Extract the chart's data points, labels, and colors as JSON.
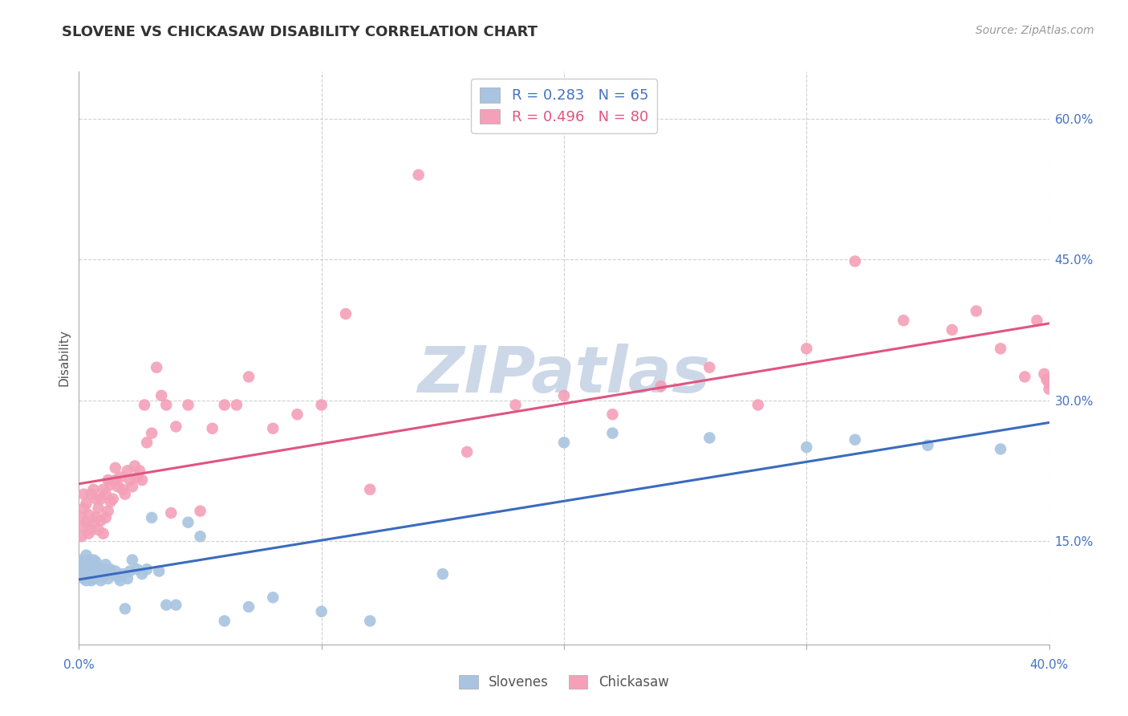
{
  "title": "SLOVENE VS CHICKASAW DISABILITY CORRELATION CHART",
  "source": "Source: ZipAtlas.com",
  "ylabel": "Disability",
  "xlim": [
    0.0,
    0.4
  ],
  "ylim": [
    0.04,
    0.65
  ],
  "yticks": [
    0.15,
    0.3,
    0.45,
    0.6
  ],
  "ytick_labels": [
    "15.0%",
    "30.0%",
    "45.0%",
    "60.0%"
  ],
  "xticks": [
    0.0,
    0.1,
    0.2,
    0.3,
    0.4
  ],
  "series": [
    {
      "name": "Slovenes",
      "color": "#a8c4e0",
      "line_color": "#3b6bbf",
      "R": 0.283,
      "N": 65,
      "x": [
        0.001,
        0.001,
        0.001,
        0.002,
        0.002,
        0.002,
        0.002,
        0.003,
        0.003,
        0.003,
        0.003,
        0.004,
        0.004,
        0.004,
        0.005,
        0.005,
        0.005,
        0.006,
        0.006,
        0.006,
        0.007,
        0.007,
        0.007,
        0.008,
        0.008,
        0.009,
        0.009,
        0.01,
        0.01,
        0.011,
        0.011,
        0.012,
        0.012,
        0.013,
        0.014,
        0.015,
        0.016,
        0.017,
        0.018,
        0.019,
        0.02,
        0.021,
        0.022,
        0.024,
        0.026,
        0.028,
        0.03,
        0.033,
        0.036,
        0.04,
        0.045,
        0.05,
        0.06,
        0.07,
        0.08,
        0.1,
        0.12,
        0.15,
        0.2,
        0.22,
        0.26,
        0.3,
        0.32,
        0.35,
        0.38
      ],
      "y": [
        0.125,
        0.115,
        0.13,
        0.11,
        0.118,
        0.128,
        0.12,
        0.108,
        0.118,
        0.125,
        0.135,
        0.112,
        0.122,
        0.13,
        0.108,
        0.115,
        0.125,
        0.11,
        0.12,
        0.13,
        0.112,
        0.118,
        0.128,
        0.115,
        0.122,
        0.108,
        0.118,
        0.112,
        0.12,
        0.115,
        0.125,
        0.11,
        0.118,
        0.12,
        0.115,
        0.118,
        0.112,
        0.108,
        0.115,
        0.078,
        0.11,
        0.118,
        0.13,
        0.12,
        0.115,
        0.12,
        0.175,
        0.118,
        0.082,
        0.082,
        0.17,
        0.155,
        0.065,
        0.08,
        0.09,
        0.075,
        0.065,
        0.115,
        0.255,
        0.265,
        0.26,
        0.25,
        0.258,
        0.252,
        0.248
      ]
    },
    {
      "name": "Chickasaw",
      "color": "#f4a0b8",
      "line_color": "#e05580",
      "R": 0.496,
      "N": 80,
      "x": [
        0.001,
        0.001,
        0.002,
        0.002,
        0.002,
        0.003,
        0.003,
        0.004,
        0.004,
        0.005,
        0.005,
        0.006,
        0.006,
        0.007,
        0.007,
        0.008,
        0.008,
        0.009,
        0.009,
        0.01,
        0.01,
        0.011,
        0.011,
        0.012,
        0.012,
        0.013,
        0.013,
        0.014,
        0.015,
        0.015,
        0.016,
        0.017,
        0.018,
        0.019,
        0.02,
        0.021,
        0.022,
        0.023,
        0.024,
        0.025,
        0.026,
        0.027,
        0.028,
        0.03,
        0.032,
        0.034,
        0.036,
        0.038,
        0.04,
        0.045,
        0.05,
        0.055,
        0.06,
        0.065,
        0.07,
        0.08,
        0.09,
        0.1,
        0.11,
        0.12,
        0.14,
        0.16,
        0.18,
        0.2,
        0.22,
        0.24,
        0.26,
        0.28,
        0.3,
        0.32,
        0.34,
        0.36,
        0.37,
        0.38,
        0.39,
        0.395,
        0.398,
        0.399,
        0.4,
        0.4
      ],
      "y": [
        0.155,
        0.175,
        0.165,
        0.185,
        0.2,
        0.17,
        0.19,
        0.158,
        0.178,
        0.162,
        0.2,
        0.17,
        0.205,
        0.175,
        0.195,
        0.162,
        0.185,
        0.172,
        0.195,
        0.158,
        0.205,
        0.175,
        0.2,
        0.182,
        0.215,
        0.192,
        0.21,
        0.195,
        0.215,
        0.228,
        0.208,
        0.218,
        0.205,
        0.2,
        0.225,
        0.215,
        0.208,
        0.23,
        0.218,
        0.225,
        0.215,
        0.295,
        0.255,
        0.265,
        0.335,
        0.305,
        0.295,
        0.18,
        0.272,
        0.295,
        0.182,
        0.27,
        0.295,
        0.295,
        0.325,
        0.27,
        0.285,
        0.295,
        0.392,
        0.205,
        0.54,
        0.245,
        0.295,
        0.305,
        0.285,
        0.315,
        0.335,
        0.295,
        0.355,
        0.448,
        0.385,
        0.375,
        0.395,
        0.355,
        0.325,
        0.385,
        0.328,
        0.322,
        0.318,
        0.312
      ]
    }
  ],
  "legend_labels": [
    "Slovenes",
    "Chickasaw"
  ],
  "background_color": "#ffffff",
  "grid_color": "#d0d0d0",
  "title_color": "#333333",
  "watermark": "ZIPatlas",
  "watermark_color": "#ccd8e8"
}
